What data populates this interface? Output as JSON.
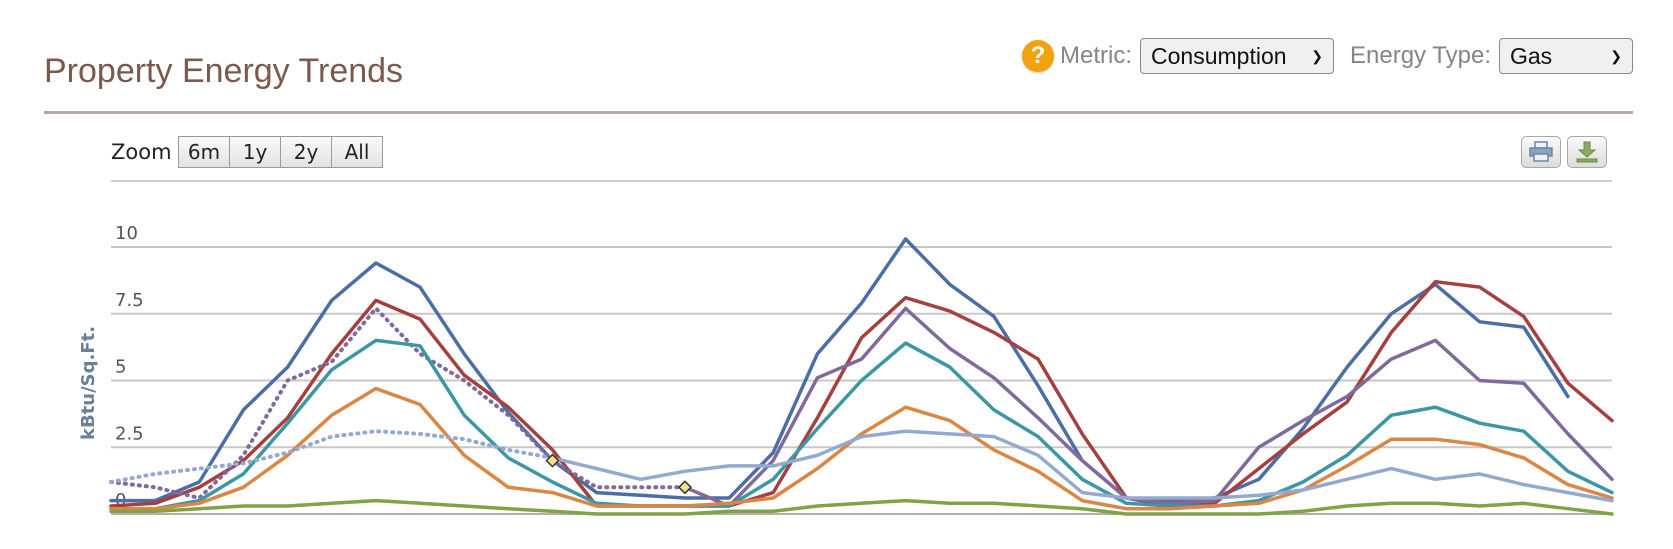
{
  "header": {
    "title": "Property Energy Trends",
    "metric_label": "Metric:",
    "metric_value": "Consumption",
    "energy_type_label": "Energy Type:",
    "energy_type_value": "Gas",
    "help_icon": "help-circle-icon"
  },
  "toolbar": {
    "zoom_label": "Zoom",
    "zoom_options": [
      "6m",
      "1y",
      "2y",
      "All"
    ],
    "print_icon": "print-icon",
    "download_icon": "download-icon"
  },
  "chart_data": {
    "type": "line",
    "ylabel": "kBtu/Sq.Ft.",
    "ylim": [
      0,
      10
    ],
    "yticks": [
      "0",
      "2.5",
      "5",
      "7.5",
      "10"
    ],
    "grid": true,
    "legend": "none",
    "series": [
      {
        "color": "#4a6fa5",
        "style": "solid",
        "values": [
          0.5,
          0.5,
          1.2,
          3.9,
          5.5,
          8.0,
          9.4,
          8.5,
          6.0,
          3.8,
          2.0,
          0.8,
          0.7,
          0.6,
          0.6,
          2.3,
          6.0,
          7.9,
          10.3,
          8.6,
          7.4,
          4.8,
          2.0,
          0.6,
          0.5,
          0.6,
          1.3,
          3.2,
          5.5,
          7.5,
          8.6,
          7.2,
          7.0,
          4.4,
          null
        ]
      },
      {
        "color": "#a6403e",
        "style": "solid",
        "values": [
          0.3,
          0.4,
          1.0,
          2.0,
          3.6,
          6.0,
          8.0,
          7.3,
          5.2,
          4.0,
          2.4,
          0.3,
          0.3,
          0.3,
          0.3,
          0.8,
          3.6,
          6.6,
          8.1,
          7.6,
          6.8,
          5.8,
          3.0,
          0.6,
          0.3,
          0.4,
          1.7,
          3.0,
          4.2,
          6.8,
          8.7,
          8.5,
          7.4,
          4.9,
          3.5
        ]
      },
      {
        "color": "#80699b",
        "style": "dotted",
        "values": [
          1.2,
          1.0,
          0.6,
          2.2,
          5.0,
          5.7,
          7.7,
          6.0,
          5.0,
          3.7,
          2.0,
          1.0,
          1.0,
          1.0,
          null,
          null,
          null,
          null,
          null,
          null,
          null,
          null,
          null,
          null,
          null,
          null,
          null,
          null,
          null,
          null,
          null,
          null,
          null,
          null,
          null
        ]
      },
      {
        "color": "#80699b",
        "style": "solid",
        "values": [
          null,
          null,
          null,
          null,
          null,
          null,
          null,
          null,
          null,
          null,
          null,
          null,
          null,
          1.0,
          0.3,
          2.0,
          5.1,
          5.8,
          7.7,
          6.2,
          5.1,
          3.6,
          2.0,
          0.6,
          0.4,
          0.5,
          2.5,
          3.5,
          4.4,
          5.8,
          6.5,
          5.0,
          4.9,
          3.0,
          1.3
        ]
      },
      {
        "color": "#3d96a3",
        "style": "solid",
        "values": [
          0.2,
          0.2,
          0.5,
          1.5,
          3.4,
          5.4,
          6.5,
          6.3,
          3.7,
          2.1,
          1.2,
          0.4,
          0.3,
          0.3,
          0.3,
          1.3,
          3.2,
          5.0,
          6.4,
          5.5,
          3.9,
          2.9,
          1.3,
          0.4,
          0.3,
          0.3,
          0.5,
          1.2,
          2.2,
          3.7,
          4.0,
          3.4,
          3.1,
          1.6,
          0.8
        ]
      },
      {
        "color": "#db8642",
        "style": "solid",
        "values": [
          0.2,
          0.2,
          0.4,
          1.0,
          2.2,
          3.7,
          4.7,
          4.1,
          2.2,
          1.0,
          0.8,
          0.3,
          0.3,
          0.3,
          0.4,
          0.6,
          1.7,
          3.0,
          4.0,
          3.5,
          2.4,
          1.6,
          0.5,
          0.2,
          0.2,
          0.3,
          0.4,
          0.9,
          1.8,
          2.8,
          2.8,
          2.6,
          2.1,
          1.1,
          0.6
        ]
      },
      {
        "color": "#93a9cf",
        "style": "dotted",
        "values": [
          1.2,
          1.5,
          1.7,
          1.9,
          2.3,
          2.9,
          3.1,
          3.0,
          2.8,
          2.4,
          2.1,
          null,
          null,
          null,
          null,
          null,
          null,
          null,
          null,
          null,
          null,
          null,
          null,
          null,
          null,
          null,
          null,
          null,
          null,
          null,
          null,
          null,
          null,
          null,
          null
        ]
      },
      {
        "color": "#93a9cf",
        "style": "solid",
        "values": [
          null,
          null,
          null,
          null,
          null,
          null,
          null,
          null,
          null,
          null,
          2.1,
          1.7,
          1.3,
          1.6,
          1.8,
          1.8,
          2.2,
          2.9,
          3.1,
          3.0,
          2.9,
          2.2,
          0.8,
          0.6,
          0.6,
          0.6,
          0.7,
          0.9,
          1.3,
          1.7,
          1.3,
          1.5,
          1.1,
          0.8,
          0.5
        ]
      },
      {
        "color": "#7ea444",
        "style": "solid",
        "values": [
          0.1,
          0.1,
          0.2,
          0.3,
          0.3,
          0.4,
          0.5,
          0.4,
          0.3,
          0.2,
          0.1,
          0.0,
          0.0,
          0.0,
          0.1,
          0.1,
          0.3,
          0.4,
          0.5,
          0.4,
          0.4,
          0.3,
          0.2,
          0.0,
          0.0,
          0.0,
          0.0,
          0.1,
          0.3,
          0.4,
          0.4,
          0.3,
          0.4,
          0.2,
          0.0
        ]
      }
    ],
    "markers": [
      {
        "series_color": "#80699b",
        "index": 10,
        "value": 2.0,
        "shape": "diamond",
        "fill": "#f2e38a"
      },
      {
        "series_color": "#80699b",
        "index": 13,
        "value": 1.0,
        "shape": "diamond",
        "fill": "#f2e38a"
      }
    ]
  }
}
